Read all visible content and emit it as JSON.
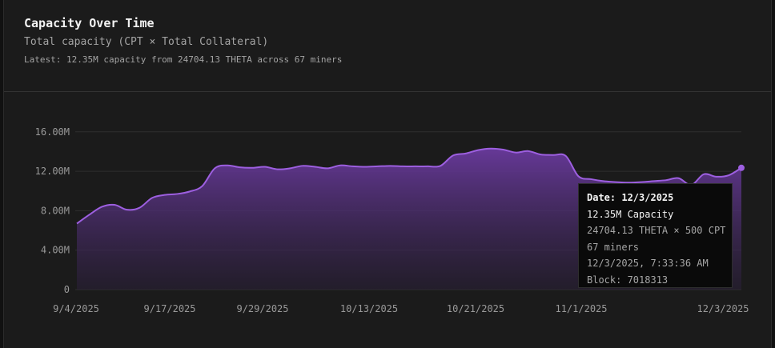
{
  "header": {
    "title": "Capacity Over Time",
    "subtitle": "Total capacity (CPT × Total Collateral)",
    "latest": "Latest: 12.35M capacity from 24704.13 THETA across 67 miners"
  },
  "colors": {
    "line": "#9d5fe0",
    "area_top": "#6a3a9e",
    "area_bottom": "#2a1f38",
    "grid": "#2f2f2f",
    "tick_text": "#9a9a9a"
  },
  "chart_data": {
    "type": "area",
    "x_tick_labels": [
      "9/4/2025",
      "9/17/2025",
      "9/29/2025",
      "10/13/2025",
      "10/21/2025",
      "11/1/2025",
      "12/3/2025"
    ],
    "y_tick_labels": [
      "0",
      "4.00M",
      "8.00M",
      "12.00M",
      "16.00M"
    ],
    "y_ticks": [
      0,
      4,
      8,
      12,
      16
    ],
    "ylim": [
      0,
      17.2
    ],
    "grid": true,
    "series": [
      {
        "values": [
          6.7,
          7.6,
          8.4,
          8.6,
          8.1,
          8.3,
          9.3,
          9.6,
          9.7,
          9.95,
          10.5,
          12.3,
          12.6,
          12.4,
          12.35,
          12.45,
          12.2,
          12.3,
          12.55,
          12.45,
          12.3,
          12.6,
          12.5,
          12.45,
          12.5,
          12.55,
          12.5,
          12.5,
          12.5,
          12.55,
          13.6,
          13.8,
          14.15,
          14.3,
          14.2,
          13.9,
          14.05,
          13.7,
          13.65,
          13.55,
          11.5,
          11.2,
          11.0,
          10.9,
          10.85,
          10.9,
          11.0,
          11.1,
          11.3,
          10.6,
          11.7,
          11.45,
          11.6,
          12.35
        ]
      }
    ],
    "tooltip": {
      "date": "Date: 12/3/2025",
      "capacity": "12.35M Capacity",
      "formula": "24704.13 THETA × 500 CPT",
      "miners": "67 miners",
      "timestamp": "12/3/2025, 7:33:36 AM",
      "block": "Block: 7018313"
    }
  }
}
